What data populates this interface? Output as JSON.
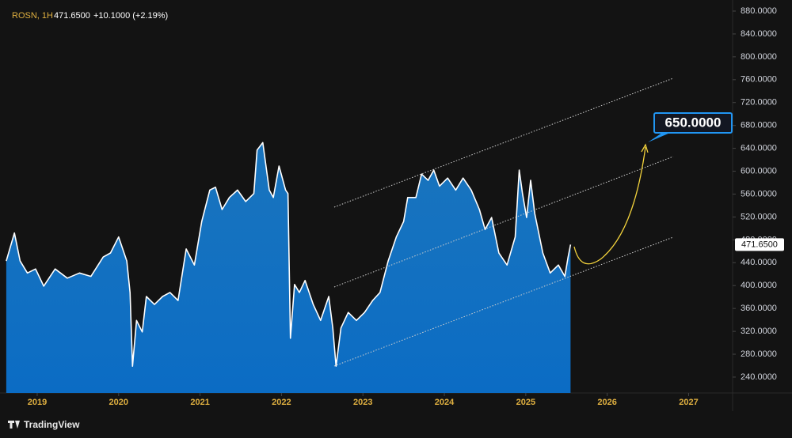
{
  "chart_data": {
    "type": "area",
    "symbol": "ROSN, 1H",
    "last": "471.6500",
    "change": "+10.1000 (+2.19%)",
    "annotation": "650.0000",
    "brand": "TradingView",
    "line_color": "#ffffff",
    "fill_color": "#1a7fd0",
    "x": [
      2018.62,
      2018.72,
      2018.79,
      2018.88,
      2018.98,
      2019.08,
      2019.22,
      2019.37,
      2019.52,
      2019.66,
      2019.81,
      2019.9,
      2020.0,
      2020.1,
      2020.14,
      2020.17,
      2020.22,
      2020.29,
      2020.34,
      2020.44,
      2020.54,
      2020.63,
      2020.73,
      2020.83,
      2020.93,
      2021.02,
      2021.12,
      2021.19,
      2021.27,
      2021.36,
      2021.46,
      2021.56,
      2021.66,
      2021.7,
      2021.77,
      2021.85,
      2021.9,
      2021.97,
      2022.05,
      2022.08,
      2022.11,
      2022.16,
      2022.22,
      2022.29,
      2022.39,
      2022.48,
      2022.58,
      2022.63,
      2022.67,
      2022.73,
      2022.82,
      2022.92,
      2023.02,
      2023.12,
      2023.21,
      2023.31,
      2023.41,
      2023.5,
      2023.55,
      2023.65,
      2023.72,
      2023.8,
      2023.87,
      2023.94,
      2024.04,
      2024.14,
      2024.23,
      2024.33,
      2024.43,
      2024.5,
      2024.58,
      2024.67,
      2024.77,
      2024.87,
      2024.92,
      2024.96,
      2025.01,
      2025.06,
      2025.11,
      2025.21,
      2025.3,
      2025.4,
      2025.48,
      2025.52,
      2025.55
    ],
    "values": [
      443,
      492,
      443,
      422,
      429,
      399,
      429,
      413,
      422,
      416,
      450,
      457,
      485,
      443,
      388,
      259,
      339,
      319,
      381,
      367,
      381,
      388,
      374,
      464,
      436,
      512,
      567,
      572,
      533,
      554,
      567,
      547,
      561,
      637,
      650,
      567,
      554,
      609,
      567,
      561,
      308,
      402,
      388,
      409,
      367,
      339,
      381,
      326,
      259,
      326,
      353,
      339,
      353,
      374,
      388,
      443,
      485,
      512,
      554,
      554,
      595,
      584,
      602,
      574,
      588,
      567,
      588,
      567,
      533,
      498,
      519,
      457,
      436,
      485,
      602,
      561,
      519,
      584,
      526,
      457,
      422,
      436,
      416,
      450,
      471.65
    ],
    "xlim": [
      2018.543,
      2027.54
    ],
    "xticks": [
      2019,
      2020,
      2021,
      2022,
      2023,
      2024,
      2025,
      2026,
      2027
    ],
    "ylim": [
      212.3,
      899.35
    ],
    "yticks": [
      {
        "value": 880,
        "label": "880.0000"
      },
      {
        "value": 840,
        "label": "840.0000"
      },
      {
        "value": 800,
        "label": "800.0000"
      },
      {
        "value": 760,
        "label": "760.0000"
      },
      {
        "value": 720,
        "label": "720.0000"
      },
      {
        "value": 680,
        "label": "680.0000"
      },
      {
        "value": 640,
        "label": "640.0000"
      },
      {
        "value": 600,
        "label": "600.0000"
      },
      {
        "value": 560,
        "label": "560.0000"
      },
      {
        "value": 520,
        "label": "520.0000"
      },
      {
        "value": 480,
        "label": "480.0000"
      },
      {
        "value": 440,
        "label": "440.0000"
      },
      {
        "value": 400,
        "label": "400.0000"
      },
      {
        "value": 360,
        "label": "360.0000"
      },
      {
        "value": 320,
        "label": "320.0000"
      },
      {
        "value": 280,
        "label": "280.0000"
      },
      {
        "value": 240,
        "label": "240.0000"
      }
    ],
    "grid": false
  }
}
